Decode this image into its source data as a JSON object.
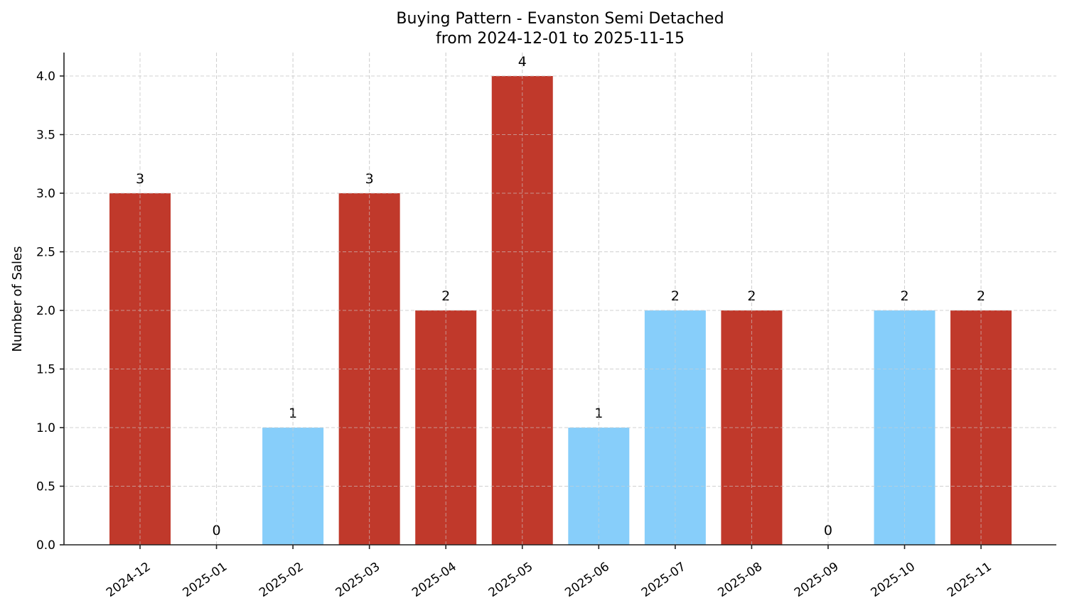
{
  "chart_data": {
    "type": "bar",
    "title": "Buying Pattern - Evanston Semi Detached",
    "subtitle": "from 2024-12-01 to 2025-11-15",
    "xlabel": "",
    "ylabel": "Number of Sales",
    "categories": [
      "2024-12",
      "2025-01",
      "2025-02",
      "2025-03",
      "2025-04",
      "2025-05",
      "2025-06",
      "2025-07",
      "2025-08",
      "2025-09",
      "2025-10",
      "2025-11"
    ],
    "values": [
      3,
      0,
      1,
      3,
      2,
      4,
      1,
      2,
      2,
      0,
      2,
      2
    ],
    "bar_colors": [
      "#C0392B",
      "#87CEFA",
      "#87CEFA",
      "#C0392B",
      "#C0392B",
      "#C0392B",
      "#87CEFA",
      "#87CEFA",
      "#C0392B",
      "#87CEFA",
      "#87CEFA",
      "#C0392B"
    ],
    "data_labels": [
      "3",
      "0",
      "1",
      "3",
      "2",
      "4",
      "1",
      "2",
      "2",
      "0",
      "2",
      "2"
    ],
    "ylim": [
      0,
      4.2
    ],
    "yticks": [
      "0.0",
      "0.5",
      "1.0",
      "1.5",
      "2.0",
      "2.5",
      "3.0",
      "3.5",
      "4.0"
    ],
    "grid": true,
    "legend": null
  },
  "colors": {
    "high": "#C0392B",
    "low": "#87CEFA"
  }
}
